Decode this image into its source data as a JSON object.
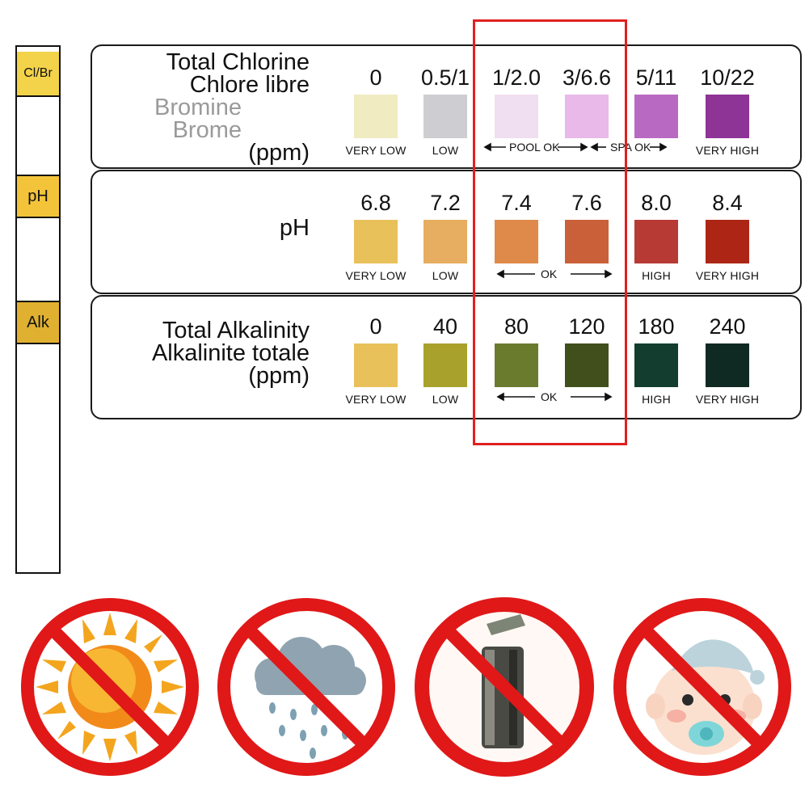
{
  "strip": {
    "pads": [
      "Cl/Br",
      "pH",
      "Alk"
    ],
    "pad_color": "#f3d34a"
  },
  "rows": [
    {
      "label_lines": [
        "Total Chlorine",
        "Chlore libre"
      ],
      "label_gray_lines": [
        "Bromine",
        "Brome"
      ],
      "label_unit": "(ppm)",
      "values": [
        "0",
        "0.5/1",
        "1/2.0",
        "3/6.6",
        "5/11",
        "10/22"
      ],
      "colors": [
        "#f1ebc2",
        "#cecdd2",
        "#f0dff0",
        "#e9b9ea",
        "#b86ac3",
        "#8d3496"
      ],
      "captions": [
        "VERY LOW",
        "LOW",
        "",
        "",
        "",
        "VERY HIGH"
      ],
      "range_captions": [
        "POOL OK",
        "SPA OK"
      ]
    },
    {
      "label_lines": [
        "pH"
      ],
      "values": [
        "6.8",
        "7.2",
        "7.4",
        "7.6",
        "8.0",
        "8.4"
      ],
      "colors": [
        "#e9c15b",
        "#e7ad60",
        "#df8a4a",
        "#c96039",
        "#b83a35",
        "#ad2615"
      ],
      "captions": [
        "VERY LOW",
        "LOW",
        "",
        "",
        "HIGH",
        "VERY HIGH"
      ],
      "range_captions": [
        "OK"
      ]
    },
    {
      "label_lines": [
        "Total Alkalinity",
        "Alkalinite totale"
      ],
      "label_unit": "(ppm)",
      "values": [
        "0",
        "40",
        "80",
        "120",
        "180",
        "240"
      ],
      "colors": [
        "#e9c15b",
        "#a8a12c",
        "#6b7b2e",
        "#414f1d",
        "#123d2f",
        "#0f2a23"
      ],
      "captions": [
        "VERY LOW",
        "LOW",
        "",
        "",
        "HIGH",
        "VERY HIGH"
      ],
      "range_captions": [
        "OK"
      ]
    }
  ],
  "warnings": [
    "no-sun-icon",
    "no-rain-icon",
    "no-open-container-icon",
    "no-children-icon"
  ],
  "accent_red": "#e01818"
}
